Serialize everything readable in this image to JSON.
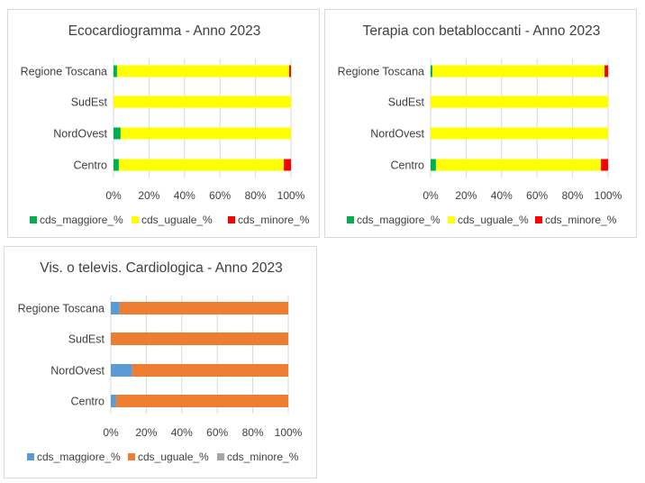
{
  "chart_data": [
    {
      "type": "bar",
      "orientation": "horizontal",
      "stacked": "100%",
      "title": "Ecocardiogramma - Anno 2023",
      "categories": [
        "Regione Toscana",
        "SudEst",
        "NordOvest",
        "Centro"
      ],
      "series": [
        {
          "name": "cds_maggiore_%",
          "color": "#00b050",
          "values": [
            2,
            0,
            4,
            3
          ]
        },
        {
          "name": "cds_uguale_%",
          "color": "#ffff00",
          "values": [
            97,
            100,
            96,
            93
          ]
        },
        {
          "name": "cds_minore_%",
          "color": "#ff0000",
          "values": [
            1,
            0,
            0,
            4
          ]
        }
      ],
      "xlim": [
        0,
        100
      ],
      "xticks": [
        "0%",
        "20%",
        "40%",
        "60%",
        "80%",
        "100%"
      ],
      "grid": "vertical",
      "legend": "bottom"
    },
    {
      "type": "bar",
      "orientation": "horizontal",
      "stacked": "100%",
      "title": "Terapia con betabloccanti - Anno 2023",
      "categories": [
        "Regione Toscana",
        "SudEst",
        "NordOvest",
        "Centro"
      ],
      "series": [
        {
          "name": "cds_maggiore_%",
          "color": "#00b050",
          "values": [
            1,
            0,
            0,
            3
          ]
        },
        {
          "name": "cds_uguale_%",
          "color": "#ffff00",
          "values": [
            97,
            100,
            100,
            93
          ]
        },
        {
          "name": "cds_minore_%",
          "color": "#ff0000",
          "values": [
            2,
            0,
            0,
            4
          ]
        }
      ],
      "xlim": [
        0,
        100
      ],
      "xticks": [
        "0%",
        "20%",
        "40%",
        "60%",
        "80%",
        "100%"
      ],
      "grid": "vertical",
      "legend": "bottom"
    },
    {
      "type": "bar",
      "orientation": "horizontal",
      "stacked": "100%",
      "title": "Vis. o televis. Cardiologica - Anno 2023",
      "categories": [
        "Regione Toscana",
        "SudEst",
        "NordOvest",
        "Centro"
      ],
      "series": [
        {
          "name": "cds_maggiore_%",
          "color": "#5b9bd5",
          "values": [
            5,
            0,
            12,
            3
          ]
        },
        {
          "name": "cds_uguale_%",
          "color": "#ed7d31",
          "values": [
            95,
            100,
            88,
            97
          ]
        },
        {
          "name": "cds_minore_%",
          "color": "#a5a5a5",
          "values": [
            0,
            0,
            0,
            0
          ]
        }
      ],
      "xlim": [
        0,
        100
      ],
      "xticks": [
        "0%",
        "20%",
        "40%",
        "60%",
        "80%",
        "100%"
      ],
      "grid": "vertical",
      "legend": "bottom"
    }
  ]
}
